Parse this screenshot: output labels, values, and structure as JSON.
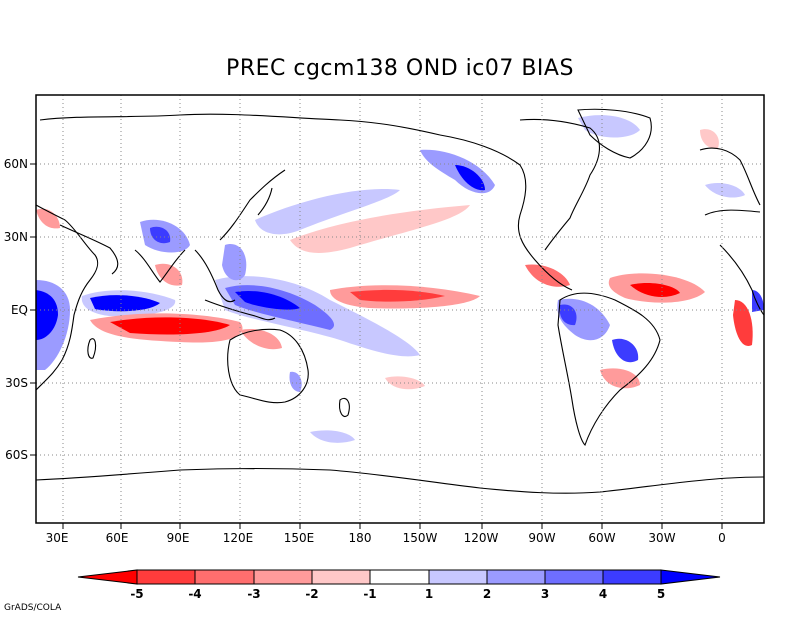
{
  "title": "PREC cgcm138 OND ic07 BIAS",
  "credit": "GrADS/COLA",
  "map": {
    "lon_labels": [
      "30E",
      "60E",
      "90E",
      "120E",
      "150E",
      "180",
      "150W",
      "120W",
      "90W",
      "60W",
      "30W",
      "0"
    ],
    "lat_labels": [
      "60N",
      "30N",
      "EQ",
      "30S",
      "60S"
    ],
    "grid": "dotted",
    "projection": "latlon"
  },
  "colorbar": {
    "labels": [
      "-5",
      "-4",
      "-3",
      "-2",
      "-1",
      "1",
      "2",
      "3",
      "4",
      "5"
    ],
    "colors": [
      "#ff0000",
      "#ff3c3c",
      "#ff6e6e",
      "#ff9b9b",
      "#ffc8c8",
      "#ffffff",
      "#c8c8ff",
      "#9b9bff",
      "#6e6eff",
      "#3c3cff",
      "#0000ff"
    ]
  },
  "colors": {
    "neg_light": "#ffc8c8",
    "neg_mid": "#ff9b9b",
    "neg_strong": "#ff3c3c",
    "pos_light": "#c8c8ff",
    "pos_mid": "#9b9bff",
    "pos_strong": "#3c3cff"
  }
}
